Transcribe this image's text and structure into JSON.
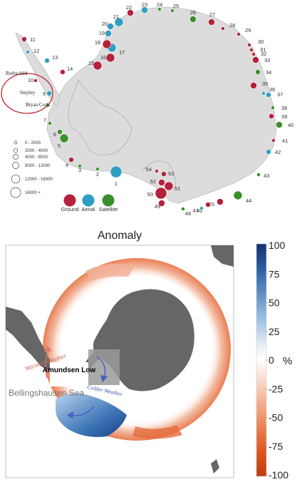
{
  "top_map": {
    "inset_labels": [
      "Rothschild",
      "Smyley",
      "Bryan Coast"
    ],
    "size_legend": [
      "0 - 2000",
      "2000 - 4000",
      "4000 - 8000",
      "8000 - 12000",
      "12000 - 16000",
      "16000 +"
    ],
    "type_legend": [
      {
        "label": "Ground",
        "color": "#b5213a"
      },
      {
        "label": "Aerial",
        "color": "#2f9ec3"
      },
      {
        "label": "Satellite",
        "color": "#3b8f2a"
      }
    ],
    "sites": [
      {
        "n": "1",
        "type": "Aerial",
        "size": 5
      },
      {
        "n": "2",
        "type": "Satellite",
        "size": 1
      },
      {
        "n": "3",
        "type": "Satellite",
        "size": 1
      },
      {
        "n": "4",
        "type": "Ground",
        "size": 2
      },
      {
        "n": "5",
        "type": "Satellite",
        "size": 4
      },
      {
        "n": "6",
        "type": "Satellite",
        "size": 2
      },
      {
        "n": "7",
        "type": "Satellite",
        "size": 1
      },
      {
        "n": "8",
        "type": "Satellite",
        "size": 1
      },
      {
        "n": "9",
        "type": "Aerial",
        "size": 2
      },
      {
        "n": "10",
        "type": "Ground",
        "size": 1
      },
      {
        "n": "11",
        "type": "Ground",
        "size": 2
      },
      {
        "n": "12",
        "type": "Aerial",
        "size": 1
      },
      {
        "n": "13",
        "type": "Aerial",
        "size": 2
      },
      {
        "n": "14",
        "type": "Ground",
        "size": 2
      },
      {
        "n": "15",
        "type": "Ground",
        "size": 4
      },
      {
        "n": "16",
        "type": "Ground",
        "size": 4
      },
      {
        "n": "17",
        "type": "Aerial",
        "size": 4
      },
      {
        "n": "18",
        "type": "Ground",
        "size": 4
      },
      {
        "n": "19",
        "type": "Aerial",
        "size": 3
      },
      {
        "n": "20",
        "type": "Aerial",
        "size": 3
      },
      {
        "n": "21",
        "type": "Aerial",
        "size": 4
      },
      {
        "n": "22",
        "type": "Ground",
        "size": 3
      },
      {
        "n": "23",
        "type": "Aerial",
        "size": 3
      },
      {
        "n": "24",
        "type": "Satellite",
        "size": 1
      },
      {
        "n": "25",
        "type": "Satellite",
        "size": 1
      },
      {
        "n": "26",
        "type": "Satellite",
        "size": 3
      },
      {
        "n": "27",
        "type": "Ground",
        "size": 3
      },
      {
        "n": "28",
        "type": "Ground",
        "size": 1
      },
      {
        "n": "29",
        "type": "Ground",
        "size": 1
      },
      {
        "n": "30",
        "type": "Ground",
        "size": 1
      },
      {
        "n": "31",
        "type": "Ground",
        "size": 1
      },
      {
        "n": "32",
        "type": "Ground",
        "size": 1
      },
      {
        "n": "33",
        "type": "Ground",
        "size": 3
      },
      {
        "n": "34",
        "type": "Satellite",
        "size": 2
      },
      {
        "n": "35",
        "type": "Ground",
        "size": 3
      },
      {
        "n": "36",
        "type": "Aerial",
        "size": 1
      },
      {
        "n": "37",
        "type": "Aerial",
        "size": 2
      },
      {
        "n": "38",
        "type": "Satellite",
        "size": 1
      },
      {
        "n": "39",
        "type": "Ground",
        "size": 2
      },
      {
        "n": "40",
        "type": "Satellite",
        "size": 3
      },
      {
        "n": "41",
        "type": "Ground",
        "size": 1
      },
      {
        "n": "42",
        "type": "Aerial",
        "size": 2
      },
      {
        "n": "43",
        "type": "Satellite",
        "size": 1
      },
      {
        "n": "44",
        "type": "Satellite",
        "size": 4
      },
      {
        "n": "45",
        "type": "Ground",
        "size": 3
      },
      {
        "n": "46",
        "type": "Ground",
        "size": 2
      },
      {
        "n": "47",
        "type": "Aerial",
        "size": 1
      },
      {
        "n": "48",
        "type": "Satellite",
        "size": 1
      },
      {
        "n": "49",
        "type": "Ground",
        "size": 3
      },
      {
        "n": "50",
        "type": "Ground",
        "size": 5
      },
      {
        "n": "51",
        "type": "Ground",
        "size": 4
      },
      {
        "n": "52",
        "type": "Ground",
        "size": 3
      },
      {
        "n": "53",
        "type": "Ground",
        "size": 2
      },
      {
        "n": "54",
        "type": "Ground",
        "size": 1
      }
    ]
  },
  "bottom_map": {
    "title": "Anomaly",
    "colorbar_ticks": [
      "100",
      "75",
      "50",
      "25",
      "0",
      "-25",
      "-50",
      "-75",
      "-100"
    ],
    "colorbar_unit": "%",
    "labels": {
      "warmer": "Warmer Weather",
      "amundsen": "Amundsen Low",
      "colder": "Colder Weather",
      "bellingshausen": "Bellingshausen Sea"
    },
    "colors": {
      "positive": "#1a3f8a",
      "negative": "#c93a10",
      "land": "#666666"
    }
  }
}
